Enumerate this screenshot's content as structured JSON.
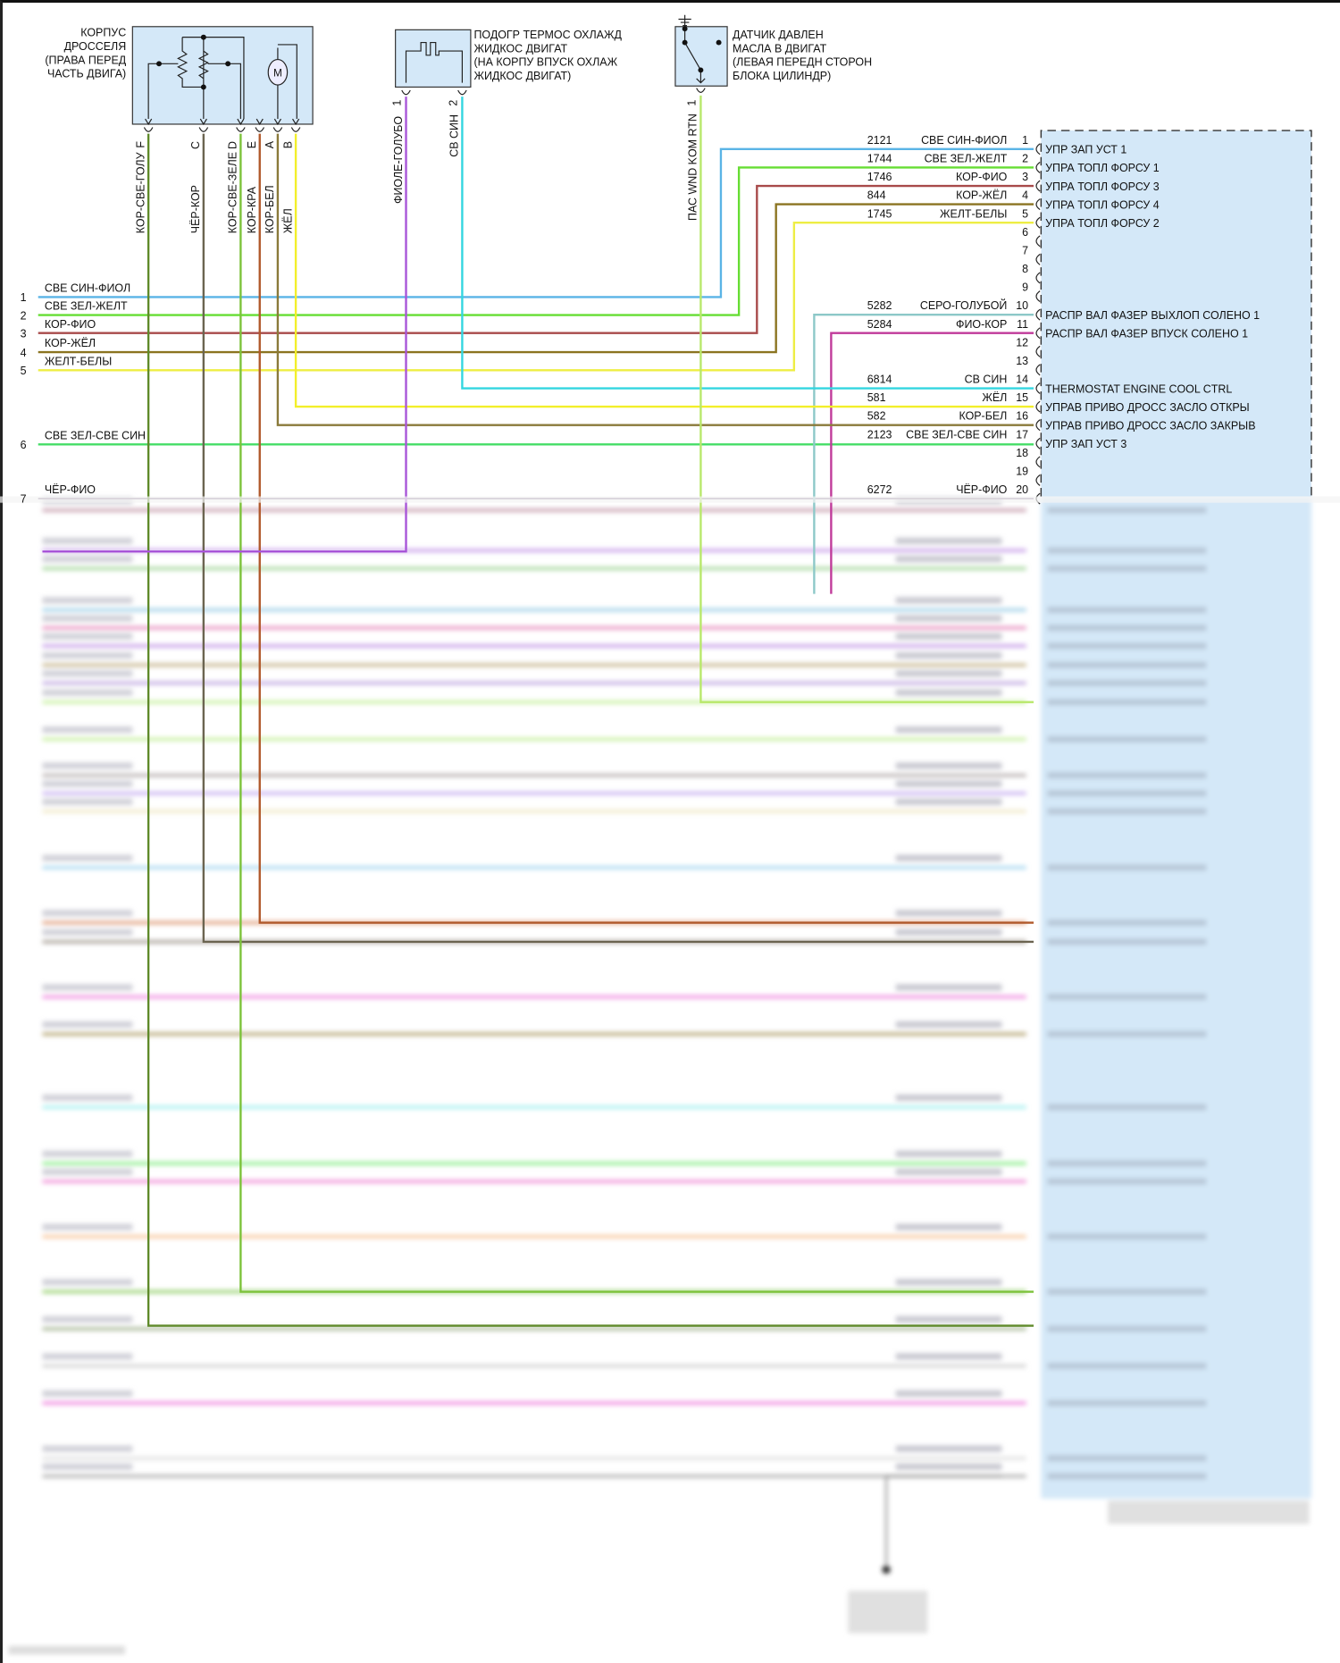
{
  "throttle_body": {
    "label": [
      "КОРПУС",
      "ДРОССЕЛЯ",
      "(ПРАВА ПЕРЕД",
      "ЧАСТЬ ДВИГА)"
    ],
    "motor_symbol": "M",
    "pins": [
      {
        "letter": "F",
        "wire": "КОР-СВЕ-ГОЛУ",
        "color": "#5f8a2a"
      },
      {
        "letter": "C",
        "wire": "ЧЁР-КОР",
        "color": "#6b6450"
      },
      {
        "letter": "D",
        "wire": "КОР-СВЕ-ЗЕЛЕ",
        "color": "#7cc23a"
      },
      {
        "letter": "E",
        "wire": "КОР-КРА",
        "color": "#b0582a"
      },
      {
        "letter": "A",
        "wire": "КОР-БЕЛ",
        "color": "#8a7a3a"
      },
      {
        "letter": "B",
        "wire": "ЖЁЛ",
        "color": "#f2ef2a"
      }
    ]
  },
  "coolant_heater": {
    "label": [
      "ПОДОГР ТЕРМОС ОХЛАЖД",
      "ЖИДКОС ДВИГАТ",
      "(НА КОРПУ ВПУСК ОХЛАЖ",
      "ЖИДКОС ДВИГАТ)"
    ],
    "pins": [
      {
        "number": "1",
        "wire": "ФИОЛЕ-ГОЛУБО",
        "color": "#a855d8"
      },
      {
        "number": "2",
        "wire": "СВ СИН",
        "color": "#33d6e0"
      }
    ]
  },
  "oil_pressure_sensor": {
    "label": [
      "ДАТЧИК ДАВЛЕН",
      "МАСЛА В ДВИГАТ",
      "(ЛЕВАЯ ПЕРЕДН СТОРОН",
      "БЛОКА ЦИЛИНДР)"
    ],
    "pin": {
      "number": "1",
      "wire": "ПАС WND KOM RTN",
      "color": "#b8e86a"
    }
  },
  "left_connector": [
    {
      "num": "1",
      "label": "СВЕ СИН-ФИОЛ"
    },
    {
      "num": "2",
      "label": "СВЕ ЗЕЛ-ЖЕЛТ"
    },
    {
      "num": "3",
      "label": "КОР-ФИО"
    },
    {
      "num": "4",
      "label": "КОР-ЖЁЛ"
    },
    {
      "num": "5",
      "label": "ЖЕЛТ-БЕЛЫ"
    },
    {
      "num": "6",
      "label": "СВЕ ЗЕЛ-СВЕ СИН"
    },
    {
      "num": "7",
      "label": "ЧЁР-ФИО"
    }
  ],
  "module_pins": [
    {
      "pin": "1",
      "circuit": "2121",
      "color_label": "СВЕ СИН-ФИОЛ",
      "function": "УПР ЗАП УСТ 1",
      "color": "#5ab4e6"
    },
    {
      "pin": "2",
      "circuit": "1744",
      "color_label": "СВЕ ЗЕЛ-ЖЕЛТ",
      "function": "УПРА ТОПЛ ФОРСУ 1",
      "color": "#66dd33"
    },
    {
      "pin": "3",
      "circuit": "1746",
      "color_label": "КОР-ФИО",
      "function": "УПРА ТОПЛ ФОРСУ 3",
      "color": "#a84a4a"
    },
    {
      "pin": "4",
      "circuit": "844",
      "color_label": "КОР-ЖЁЛ",
      "function": "УПРА ТОПЛ ФОРСУ 4",
      "color": "#8b7420"
    },
    {
      "pin": "5",
      "circuit": "1745",
      "color_label": "ЖЕЛТ-БЕЛЫ",
      "function": "УПРА ТОПЛ ФОРСУ 2",
      "color": "#eeee44"
    },
    {
      "pin": "6",
      "circuit": "",
      "color_label": "",
      "function": "",
      "color": ""
    },
    {
      "pin": "7",
      "circuit": "",
      "color_label": "",
      "function": "",
      "color": ""
    },
    {
      "pin": "8",
      "circuit": "",
      "color_label": "",
      "function": "",
      "color": ""
    },
    {
      "pin": "9",
      "circuit": "",
      "color_label": "",
      "function": "",
      "color": ""
    },
    {
      "pin": "10",
      "circuit": "5282",
      "color_label": "СЕРО-ГОЛУБОЙ",
      "function": "РАСПР ВАЛ ФАЗЕР ВЫХЛОП СОЛЕНО 1",
      "color": "#8cc8c8"
    },
    {
      "pin": "11",
      "circuit": "5284",
      "color_label": "ФИО-КОР",
      "function": "РАСПР ВАЛ ФАЗЕР ВПУСК СОЛЕНО 1",
      "color": "#c03a9a"
    },
    {
      "pin": "12",
      "circuit": "",
      "color_label": "",
      "function": "",
      "color": ""
    },
    {
      "pin": "13",
      "circuit": "",
      "color_label": "",
      "function": "",
      "color": ""
    },
    {
      "pin": "14",
      "circuit": "6814",
      "color_label": "СВ СИН",
      "function": "THERMOSTAT ENGINE COOL CTRL",
      "color": "#33d6e0"
    },
    {
      "pin": "15",
      "circuit": "581",
      "color_label": "ЖЁЛ",
      "function": "УПРАВ ПРИВО ДРОСС ЗАСЛО ОТКРЫ",
      "color": "#f2ef2a"
    },
    {
      "pin": "16",
      "circuit": "582",
      "color_label": "КОР-БЕЛ",
      "function": "УПРАВ ПРИВО ДРОСС ЗАСЛО ЗАКРЫВ",
      "color": "#7a6a2a"
    },
    {
      "pin": "17",
      "circuit": "2123",
      "color_label": "СВЕ ЗЕЛ-СВЕ СИН",
      "function": "УПР ЗАП УСТ 3",
      "color": "#44dd66"
    },
    {
      "pin": "18",
      "circuit": "",
      "color_label": "",
      "function": "",
      "color": ""
    },
    {
      "pin": "19",
      "circuit": "",
      "color_label": "",
      "function": "",
      "color": ""
    },
    {
      "pin": "20",
      "circuit": "6272",
      "color_label": "ЧЁР-ФИО",
      "function": "",
      "color": "#9a8aa0"
    }
  ]
}
